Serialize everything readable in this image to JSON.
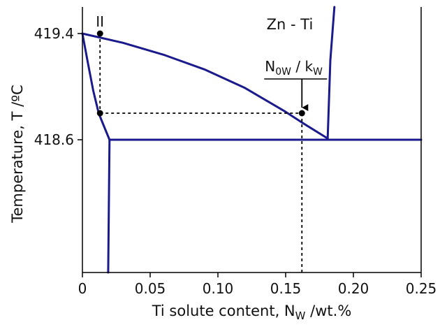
{
  "chart_data": {
    "type": "line",
    "title": "Zn - Ti",
    "xlabel": {
      "main": "Ti solute content, N",
      "sub": "W",
      "tail": " /wt.%"
    },
    "ylabel": "Temperature, T /ºC",
    "xlim": [
      0,
      0.25
    ],
    "ylim": [
      417.6,
      419.6
    ],
    "x_ticks": [
      0,
      0.05,
      0.1,
      0.15,
      0.2,
      0.25
    ],
    "x_tick_labels": [
      "0",
      "0.05",
      "0.10",
      "0.15",
      "0.20",
      "0.25"
    ],
    "y_ticks": [
      418.6,
      419.4
    ],
    "y_tick_labels": [
      "418.6",
      "419.4"
    ],
    "grid": false,
    "colors": {
      "curve": "#1a1a8c",
      "dotted": "#000000",
      "axis": "#000000"
    },
    "series": [
      {
        "role": "liquidus",
        "x": [
          0,
          0.03,
          0.06,
          0.09,
          0.12,
          0.15,
          0.162,
          0.181
        ],
        "y": [
          419.4,
          419.33,
          419.24,
          419.13,
          418.99,
          418.81,
          418.73,
          418.61
        ]
      },
      {
        "role": "solidus",
        "x": [
          0,
          0.004,
          0.008,
          0.012,
          0.016,
          0.02
        ],
        "y": [
          419.4,
          419.18,
          418.97,
          418.8,
          418.7,
          418.6
        ]
      },
      {
        "role": "peritectic-horizontal",
        "x": [
          0.02,
          0.181,
          0.25
        ],
        "y": [
          418.6,
          418.6,
          418.6
        ]
      },
      {
        "role": "solvus",
        "x": [
          0.02,
          0.019
        ],
        "y": [
          418.6,
          417.6
        ]
      },
      {
        "role": "peritectic-liquidus",
        "x": [
          0.181,
          0.183,
          0.186
        ],
        "y": [
          418.6,
          419.2,
          419.6
        ]
      }
    ],
    "points": [
      {
        "x": 0.013,
        "y": 419.4
      },
      {
        "x": 0.013,
        "y": 418.8
      },
      {
        "x": 0.162,
        "y": 418.8
      }
    ],
    "dotted_guides": [
      {
        "x": [
          0.013,
          0.013
        ],
        "y": [
          419.4,
          418.8
        ]
      },
      {
        "x": [
          0.013,
          0.162
        ],
        "y": [
          418.8,
          418.8
        ]
      },
      {
        "x": [
          0.162,
          0.162
        ],
        "y": [
          418.8,
          417.6
        ]
      }
    ],
    "annotations": {
      "point_label": "II",
      "ratio_label": {
        "n": "N",
        "n_sub": "0W",
        "sep": " / ",
        "k": "k",
        "k_sub": "W"
      },
      "ratio_arrow_target": {
        "x": 0.162,
        "y": 418.8
      }
    }
  }
}
